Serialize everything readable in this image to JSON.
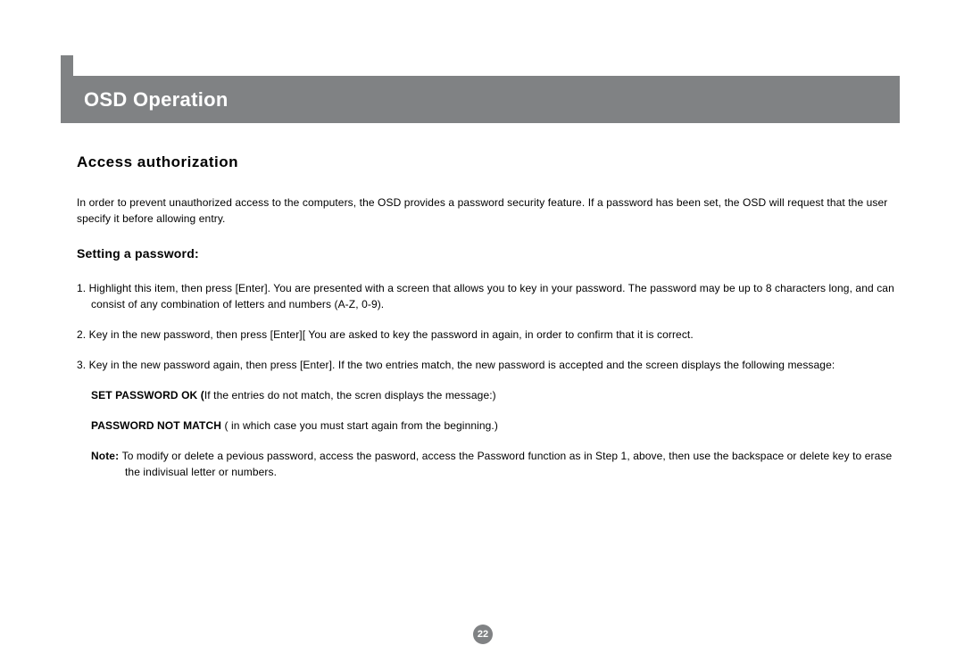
{
  "header": {
    "title": "OSD Operation"
  },
  "section": {
    "title": "Access  authorization",
    "intro": "In order to prevent unauthorized access to the computers, the OSD provides a password security feature.  If a password has been set, the OSD will request that the user specify it before allowing entry."
  },
  "subsection": {
    "title": "Setting a password:",
    "items": [
      "1. Highlight this item, then press [Enter]. You are presented with a screen that allows you to key in your password. The password may be up to 8 characters long, and can consist of any combination of letters and numbers (A-Z, 0-9).",
      "2. Key in the new password, then press [Enter][ You are asked to key the password in again, in order to confirm that it is correct.",
      "3. Key in the new password again, then press [Enter].  If the two entries match, the new password is accepted and the screen displays the following message:"
    ],
    "message1_label": "SET PASSWORD OK (",
    "message1_text": "If the entries do not match, the scren displays the message:)",
    "message2_label": "PASSWORD NOT MATCH ",
    "message2_text": "( in which case you must start again from the beginning.)",
    "note_label": "Note: ",
    "note_text": "To modify or delete a pevious password, access the pasword, access the Password function as in Step 1, above, then use the backspace or delete key to erase the indivisual letter or numbers."
  },
  "page_number": "22",
  "colors": {
    "header_bg": "#808284",
    "header_text": "#ffffff",
    "body_text": "#000000",
    "page_bg": "#ffffff"
  }
}
